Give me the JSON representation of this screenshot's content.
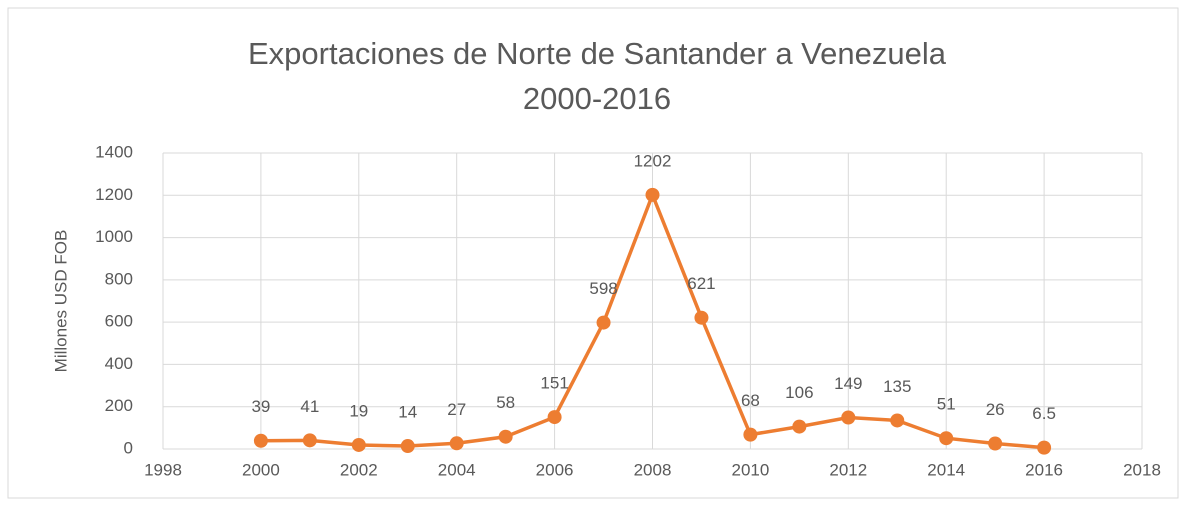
{
  "chart_data": {
    "type": "line",
    "title": [
      "Exportaciones de Norte de Santander a Venezuela",
      "2000-2016"
    ],
    "y_label": "Millones USD FOB",
    "x": [
      2000,
      2001,
      2002,
      2003,
      2004,
      2005,
      2006,
      2007,
      2008,
      2009,
      2010,
      2011,
      2012,
      2013,
      2014,
      2015,
      2016
    ],
    "values": [
      39,
      41,
      19,
      14,
      27,
      58,
      151,
      598,
      1202,
      621,
      68,
      106,
      149,
      135,
      51,
      26,
      6.5
    ],
    "color": "#ed7d31",
    "xlim": [
      1998,
      2018
    ],
    "xticks": [
      1998,
      2000,
      2002,
      2004,
      2006,
      2008,
      2010,
      2012,
      2014,
      2016,
      2018
    ],
    "ylim": [
      0,
      1400
    ],
    "yticks": [
      0,
      200,
      400,
      600,
      800,
      1000,
      1200,
      1400
    ],
    "grid": true
  }
}
